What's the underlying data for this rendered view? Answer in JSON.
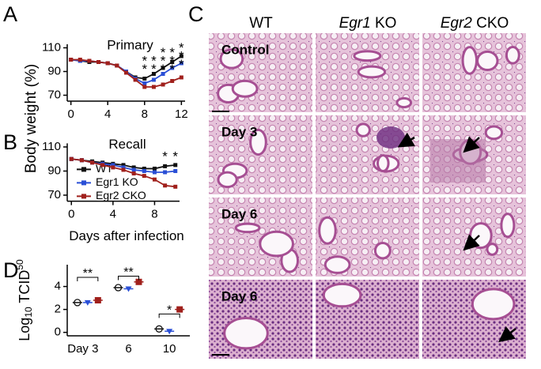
{
  "panel_letters": [
    "A",
    "B",
    "C",
    "D"
  ],
  "shared_ylabel": "Body weight (%)",
  "chart_data": [
    {
      "type": "line",
      "title": "Primary",
      "x": [
        0,
        1,
        2,
        3,
        4,
        5,
        6,
        7,
        8,
        9,
        10,
        11,
        12
      ],
      "series": [
        {
          "name": "WT",
          "color": "#111111",
          "values": [
            100,
            99,
            98,
            98,
            97,
            95,
            90,
            85,
            84,
            88,
            93,
            98,
            103
          ]
        },
        {
          "name": "Egr1 KO",
          "color": "#2a4fd6",
          "values": [
            100,
            99,
            99,
            98,
            97,
            95,
            90,
            84,
            80,
            83,
            88,
            93,
            97
          ]
        },
        {
          "name": "Egr2 CKO",
          "color": "#a0201c",
          "values": [
            100,
            100,
            99,
            98,
            97,
            95,
            89,
            83,
            77,
            77,
            79,
            82,
            85
          ]
        }
      ],
      "xlim": [
        -0.4,
        12.4
      ],
      "xticks": [
        0,
        4,
        8,
        12
      ],
      "ylim": [
        65,
        113
      ],
      "yticks": [
        70,
        90,
        110
      ],
      "annotations": [
        {
          "text": "*",
          "x": 8,
          "y": 101,
          "color": "#d23a2a"
        },
        {
          "text": "*",
          "x": 8,
          "y": 94,
          "color": "#3050d8"
        },
        {
          "text": "*",
          "x": 9,
          "y": 101,
          "color": "#d23a2a"
        },
        {
          "text": "*",
          "x": 9,
          "y": 94,
          "color": "#3050d8"
        },
        {
          "text": "*",
          "x": 10,
          "y": 108,
          "color": "#d23a2a"
        },
        {
          "text": "*",
          "x": 10,
          "y": 101,
          "color": "#d23a2a"
        },
        {
          "text": "*",
          "x": 10,
          "y": 94,
          "color": "#3050d8"
        },
        {
          "text": "*",
          "x": 11,
          "y": 108,
          "color": "#d23a2a"
        },
        {
          "text": "*",
          "x": 11,
          "y": 101,
          "color": "#d23a2a"
        },
        {
          "text": "*",
          "x": 11,
          "y": 94,
          "color": "#3050d8"
        },
        {
          "text": "*",
          "x": 12,
          "y": 112,
          "color": "#d23a2a"
        },
        {
          "text": "*",
          "x": 12,
          "y": 105,
          "color": "#d23a2a"
        },
        {
          "text": "*",
          "x": 12,
          "y": 98,
          "color": "#3050d8"
        }
      ]
    },
    {
      "type": "line",
      "title": "Recall",
      "xlabel": "Days after infection",
      "legend": "left",
      "x": [
        0,
        1,
        2,
        3,
        4,
        5,
        6,
        7,
        8,
        9,
        10
      ],
      "series": [
        {
          "name": "WT",
          "color": "#111111",
          "values": [
            100,
            99,
            98,
            97,
            96,
            95,
            93,
            92,
            92,
            94,
            95
          ]
        },
        {
          "name": "Egr1 KO",
          "color": "#2a4fd6",
          "values": [
            100,
            99,
            97,
            96,
            95,
            93,
            91,
            90,
            89,
            89,
            90
          ]
        },
        {
          "name": "Egr2 CKO",
          "color": "#a0201c",
          "values": [
            100,
            99,
            97,
            95,
            93,
            91,
            88,
            86,
            83,
            78,
            77
          ]
        }
      ],
      "xlim": [
        -0.4,
        10.4
      ],
      "xticks": [
        0,
        4,
        8
      ],
      "ylim": [
        65,
        113
      ],
      "yticks": [
        70,
        90,
        110
      ],
      "annotations": [
        {
          "text": "*",
          "x": 9,
          "y": 104,
          "color": "#d23a2a"
        },
        {
          "text": "*",
          "x": 10,
          "y": 104,
          "color": "#d23a2a"
        }
      ]
    },
    {
      "type": "scatter",
      "ylabel_parts": [
        "Log",
        "10",
        " TCID",
        "50"
      ],
      "categories": [
        "Day 3",
        "6",
        "10"
      ],
      "series": [
        {
          "name": "WT",
          "color": "#111111",
          "values": [
            2.6,
            3.9,
            0.3
          ]
        },
        {
          "name": "Egr1 KO",
          "color": "#2a4fd6",
          "values": [
            2.6,
            3.8,
            0.1
          ]
        },
        {
          "name": "Egr2 CKO",
          "color": "#a0201c",
          "values": [
            2.8,
            4.4,
            2.0
          ]
        }
      ],
      "ylim": [
        -0.3,
        5.9
      ],
      "yticks": [
        0,
        2,
        4
      ],
      "annotations": [
        {
          "text": "**",
          "y": 4.8
        },
        {
          "text": "**",
          "y": 4.9
        },
        {
          "text": "*",
          "y": 1.6
        }
      ]
    }
  ],
  "panel_c": {
    "columns": [
      {
        "gene": "",
        "suffix": "WT"
      },
      {
        "gene": "Egr1",
        "suffix": " KO"
      },
      {
        "gene": "Egr2",
        "suffix": " CKO"
      }
    ],
    "rows": [
      "Control",
      "Day 3",
      "Day 6",
      "Day 6"
    ]
  }
}
